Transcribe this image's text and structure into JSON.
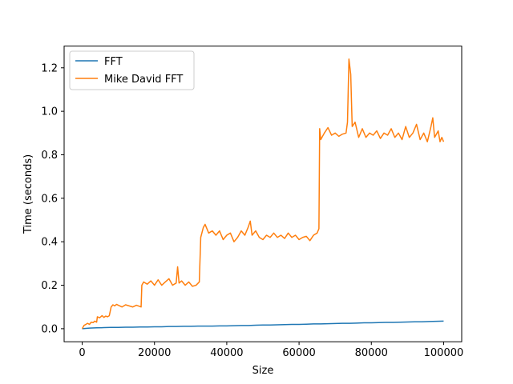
{
  "chart_data": {
    "type": "line",
    "title": "",
    "xlabel": "Size",
    "ylabel": "Time (seconds)",
    "xlim": [
      -5000,
      105000
    ],
    "ylim": [
      -0.06,
      1.3
    ],
    "x_ticks": [
      0,
      20000,
      40000,
      60000,
      80000,
      100000
    ],
    "x_tick_labels": [
      "0",
      "20000",
      "40000",
      "60000",
      "80000",
      "100000"
    ],
    "y_ticks": [
      0.0,
      0.2,
      0.4,
      0.6,
      0.8,
      1.0,
      1.2
    ],
    "y_tick_labels": [
      "0.0",
      "0.2",
      "0.4",
      "0.6",
      "0.8",
      "1.0",
      "1.2"
    ],
    "grid": false,
    "legend_position": "top-left",
    "series": [
      {
        "name": "FFT",
        "color": "#1f77b4",
        "points": [
          [
            0,
            0.0
          ],
          [
            2000,
            0.003
          ],
          [
            4000,
            0.004
          ],
          [
            6000,
            0.005
          ],
          [
            8000,
            0.006
          ],
          [
            10000,
            0.006
          ],
          [
            12000,
            0.007
          ],
          [
            14000,
            0.007
          ],
          [
            16000,
            0.008
          ],
          [
            18000,
            0.008
          ],
          [
            20000,
            0.009
          ],
          [
            22000,
            0.009
          ],
          [
            24000,
            0.01
          ],
          [
            26000,
            0.01
          ],
          [
            28000,
            0.011
          ],
          [
            30000,
            0.011
          ],
          [
            32000,
            0.012
          ],
          [
            34000,
            0.012
          ],
          [
            36000,
            0.012
          ],
          [
            38000,
            0.013
          ],
          [
            40000,
            0.013
          ],
          [
            42000,
            0.014
          ],
          [
            44000,
            0.015
          ],
          [
            46000,
            0.015
          ],
          [
            48000,
            0.016
          ],
          [
            50000,
            0.017
          ],
          [
            52000,
            0.017
          ],
          [
            54000,
            0.018
          ],
          [
            56000,
            0.019
          ],
          [
            58000,
            0.02
          ],
          [
            60000,
            0.02
          ],
          [
            62000,
            0.021
          ],
          [
            64000,
            0.022
          ],
          [
            66000,
            0.022
          ],
          [
            68000,
            0.023
          ],
          [
            70000,
            0.024
          ],
          [
            72000,
            0.025
          ],
          [
            74000,
            0.025
          ],
          [
            76000,
            0.026
          ],
          [
            78000,
            0.027
          ],
          [
            80000,
            0.027
          ],
          [
            82000,
            0.028
          ],
          [
            84000,
            0.029
          ],
          [
            86000,
            0.029
          ],
          [
            88000,
            0.03
          ],
          [
            90000,
            0.031
          ],
          [
            92000,
            0.032
          ],
          [
            94000,
            0.032
          ],
          [
            96000,
            0.033
          ],
          [
            98000,
            0.034
          ],
          [
            100000,
            0.035
          ]
        ]
      },
      {
        "name": "Mike David FFT",
        "color": "#ff7f0e",
        "points": [
          [
            0,
            0.0
          ],
          [
            500,
            0.015
          ],
          [
            1000,
            0.02
          ],
          [
            1500,
            0.025
          ],
          [
            2000,
            0.02
          ],
          [
            2500,
            0.03
          ],
          [
            3000,
            0.028
          ],
          [
            3500,
            0.035
          ],
          [
            4000,
            0.03
          ],
          [
            4200,
            0.055
          ],
          [
            4800,
            0.05
          ],
          [
            5500,
            0.06
          ],
          [
            6000,
            0.052
          ],
          [
            6500,
            0.058
          ],
          [
            7000,
            0.055
          ],
          [
            7500,
            0.06
          ],
          [
            8000,
            0.1
          ],
          [
            8500,
            0.11
          ],
          [
            9000,
            0.105
          ],
          [
            9500,
            0.112
          ],
          [
            10000,
            0.108
          ],
          [
            11000,
            0.1
          ],
          [
            12000,
            0.11
          ],
          [
            13000,
            0.105
          ],
          [
            14000,
            0.1
          ],
          [
            15000,
            0.108
          ],
          [
            16300,
            0.1
          ],
          [
            16500,
            0.2
          ],
          [
            17000,
            0.215
          ],
          [
            18000,
            0.205
          ],
          [
            19000,
            0.22
          ],
          [
            20000,
            0.2
          ],
          [
            21000,
            0.225
          ],
          [
            22000,
            0.2
          ],
          [
            23000,
            0.215
          ],
          [
            24000,
            0.23
          ],
          [
            25000,
            0.2
          ],
          [
            26000,
            0.21
          ],
          [
            26400,
            0.285
          ],
          [
            26800,
            0.21
          ],
          [
            27500,
            0.22
          ],
          [
            28500,
            0.2
          ],
          [
            29500,
            0.215
          ],
          [
            30500,
            0.195
          ],
          [
            31500,
            0.2
          ],
          [
            32400,
            0.215
          ],
          [
            32800,
            0.42
          ],
          [
            33500,
            0.465
          ],
          [
            34000,
            0.48
          ],
          [
            35000,
            0.44
          ],
          [
            36000,
            0.45
          ],
          [
            37000,
            0.43
          ],
          [
            38000,
            0.45
          ],
          [
            39000,
            0.41
          ],
          [
            40000,
            0.43
          ],
          [
            41000,
            0.44
          ],
          [
            42000,
            0.4
          ],
          [
            43000,
            0.42
          ],
          [
            44000,
            0.45
          ],
          [
            45000,
            0.43
          ],
          [
            46000,
            0.47
          ],
          [
            46500,
            0.495
          ],
          [
            47000,
            0.43
          ],
          [
            48000,
            0.45
          ],
          [
            49000,
            0.42
          ],
          [
            50000,
            0.41
          ],
          [
            51000,
            0.43
          ],
          [
            52000,
            0.42
          ],
          [
            53000,
            0.44
          ],
          [
            54000,
            0.42
          ],
          [
            55000,
            0.43
          ],
          [
            56000,
            0.415
          ],
          [
            57000,
            0.44
          ],
          [
            58000,
            0.42
          ],
          [
            59000,
            0.43
          ],
          [
            60000,
            0.41
          ],
          [
            61000,
            0.42
          ],
          [
            62000,
            0.425
          ],
          [
            63000,
            0.405
          ],
          [
            64000,
            0.43
          ],
          [
            65000,
            0.44
          ],
          [
            65500,
            0.46
          ],
          [
            65700,
            0.92
          ],
          [
            66000,
            0.87
          ],
          [
            67000,
            0.9
          ],
          [
            68000,
            0.925
          ],
          [
            69000,
            0.89
          ],
          [
            70000,
            0.9
          ],
          [
            71000,
            0.885
          ],
          [
            72000,
            0.895
          ],
          [
            73000,
            0.9
          ],
          [
            73400,
            0.95
          ],
          [
            73800,
            1.24
          ],
          [
            74300,
            1.17
          ],
          [
            74700,
            0.93
          ],
          [
            75500,
            0.95
          ],
          [
            76500,
            0.88
          ],
          [
            77500,
            0.92
          ],
          [
            78500,
            0.88
          ],
          [
            79500,
            0.9
          ],
          [
            80500,
            0.89
          ],
          [
            81500,
            0.91
          ],
          [
            82500,
            0.875
          ],
          [
            83500,
            0.9
          ],
          [
            84500,
            0.89
          ],
          [
            85500,
            0.92
          ],
          [
            86500,
            0.88
          ],
          [
            87500,
            0.9
          ],
          [
            88500,
            0.87
          ],
          [
            89500,
            0.93
          ],
          [
            90500,
            0.88
          ],
          [
            91500,
            0.9
          ],
          [
            92500,
            0.94
          ],
          [
            93500,
            0.87
          ],
          [
            94500,
            0.9
          ],
          [
            95500,
            0.86
          ],
          [
            96500,
            0.93
          ],
          [
            97000,
            0.97
          ],
          [
            97500,
            0.88
          ],
          [
            98500,
            0.91
          ],
          [
            99000,
            0.86
          ],
          [
            99500,
            0.88
          ],
          [
            100000,
            0.86
          ]
        ]
      }
    ]
  }
}
